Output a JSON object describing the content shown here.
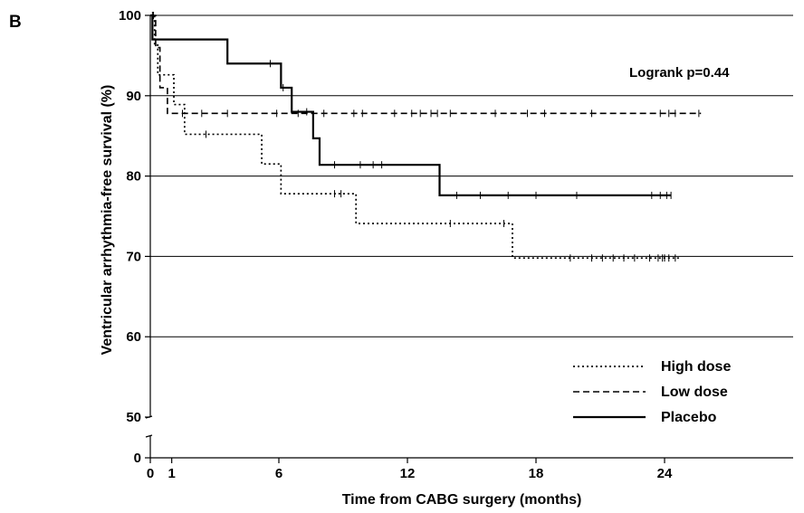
{
  "panel_label": "B",
  "annotation": "Logrank p=0.44",
  "chart_data": {
    "type": "line",
    "subtype": "kaplan-meier",
    "xlabel": "Time from CABG surgery (months)",
    "ylabel": "Ventricular arrhythmia-free survival (%)",
    "xlim": [
      0,
      30
    ],
    "ylim_main": [
      50,
      100
    ],
    "y_broken_axis": true,
    "x_ticks": [
      0,
      1,
      6,
      12,
      18,
      24
    ],
    "x_tick_labels": [
      "0",
      "1",
      "6",
      "12",
      "18",
      "24"
    ],
    "y_ticks": [
      0,
      50,
      60,
      70,
      80,
      90,
      100
    ],
    "y_tick_labels": [
      "0",
      "50",
      "60",
      "70",
      "80",
      "90",
      "100"
    ],
    "grid_y": [
      60,
      70,
      80,
      90,
      100
    ],
    "legend": {
      "position": "bottom-right",
      "entries": [
        "High dose",
        "Low dose",
        "Placebo"
      ]
    },
    "series": [
      {
        "name": "High dose",
        "style": "dotted",
        "steps": [
          [
            0,
            100
          ],
          [
            0.2,
            96.3
          ],
          [
            0.35,
            92.6
          ],
          [
            1.1,
            88.9
          ],
          [
            1.6,
            85.2
          ],
          [
            5.2,
            81.5
          ],
          [
            6.1,
            77.8
          ],
          [
            9.6,
            74.1
          ],
          [
            16.9,
            69.8
          ],
          [
            24.7,
            69.8
          ]
        ],
        "censored": [
          [
            0.1,
            100
          ],
          [
            2.6,
            85.2
          ],
          [
            8.6,
            77.8
          ],
          [
            8.9,
            77.8
          ],
          [
            14.0,
            74.1
          ],
          [
            16.5,
            74.1
          ],
          [
            19.6,
            69.8
          ],
          [
            20.6,
            69.8
          ],
          [
            21.1,
            69.8
          ],
          [
            21.6,
            69.8
          ],
          [
            22.1,
            69.8
          ],
          [
            22.6,
            69.8
          ],
          [
            23.3,
            69.8
          ],
          [
            23.7,
            69.8
          ],
          [
            23.9,
            69.8
          ],
          [
            24.0,
            69.8
          ],
          [
            24.2,
            69.8
          ],
          [
            24.5,
            69.8
          ]
        ]
      },
      {
        "name": "Low dose",
        "style": "dashed",
        "steps": [
          [
            0,
            100
          ],
          [
            0.25,
            96.0
          ],
          [
            0.45,
            91.0
          ],
          [
            0.8,
            87.8
          ],
          [
            25.7,
            87.8
          ]
        ],
        "censored": [
          [
            0.15,
            100
          ],
          [
            1.5,
            87.8
          ],
          [
            2.4,
            87.8
          ],
          [
            3.6,
            87.8
          ],
          [
            5.9,
            87.8
          ],
          [
            6.9,
            87.8
          ],
          [
            8.1,
            87.8
          ],
          [
            9.5,
            87.8
          ],
          [
            9.9,
            87.8
          ],
          [
            11.4,
            87.8
          ],
          [
            12.2,
            87.8
          ],
          [
            12.6,
            87.8
          ],
          [
            13.1,
            87.8
          ],
          [
            13.4,
            87.8
          ],
          [
            14.0,
            87.8
          ],
          [
            16.1,
            87.8
          ],
          [
            17.6,
            87.8
          ],
          [
            18.4,
            87.8
          ],
          [
            20.6,
            87.8
          ],
          [
            23.8,
            87.8
          ],
          [
            24.2,
            87.8
          ],
          [
            24.5,
            87.8
          ],
          [
            25.6,
            87.8
          ]
        ]
      },
      {
        "name": "Placebo",
        "style": "solid",
        "steps": [
          [
            0,
            100
          ],
          [
            0.1,
            97.0
          ],
          [
            3.6,
            94.0
          ],
          [
            6.1,
            91.0
          ],
          [
            6.6,
            88.0
          ],
          [
            7.6,
            84.7
          ],
          [
            7.9,
            81.4
          ],
          [
            13.5,
            77.6
          ],
          [
            24.3,
            77.6
          ]
        ],
        "censored": [
          [
            5.6,
            94.0
          ],
          [
            6.2,
            91.0
          ],
          [
            7.3,
            88.0
          ],
          [
            8.6,
            81.4
          ],
          [
            9.8,
            81.4
          ],
          [
            10.4,
            81.4
          ],
          [
            10.8,
            81.4
          ],
          [
            14.3,
            77.6
          ],
          [
            15.4,
            77.6
          ],
          [
            16.7,
            77.6
          ],
          [
            18.0,
            77.6
          ],
          [
            19.9,
            77.6
          ],
          [
            23.4,
            77.6
          ],
          [
            23.8,
            77.6
          ],
          [
            24.1,
            77.6
          ],
          [
            24.3,
            77.6
          ]
        ]
      }
    ]
  }
}
